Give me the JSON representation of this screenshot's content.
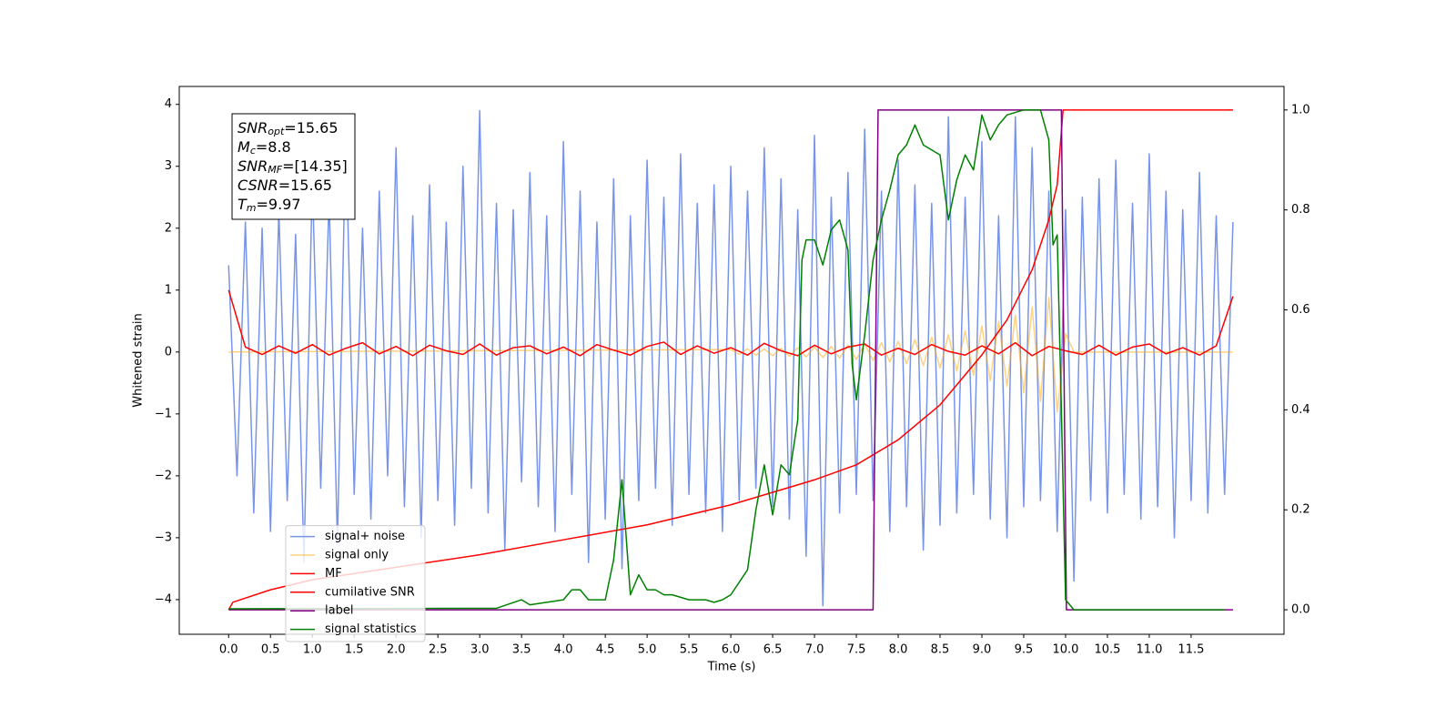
{
  "chart_data": {
    "type": "line",
    "xlabel": "Time (s)",
    "ylabel": "Whitened strain",
    "xlim": [
      -0.59,
      12.61
    ],
    "ylim": [
      -4.56,
      4.29
    ],
    "y2lim": [
      -0.049,
      1.047
    ],
    "xticks": [
      {
        "value": 0,
        "label": "0.0"
      },
      {
        "value": 0.5,
        "label": "0.5"
      },
      {
        "value": 1,
        "label": "1.0"
      },
      {
        "value": 1.5,
        "label": "1.5"
      },
      {
        "value": 2,
        "label": "2.0"
      },
      {
        "value": 2.5,
        "label": "2.5"
      },
      {
        "value": 3,
        "label": "3.0"
      },
      {
        "value": 3.5,
        "label": "3.5"
      },
      {
        "value": 4,
        "label": "4.0"
      },
      {
        "value": 4.5,
        "label": "4.5"
      },
      {
        "value": 5,
        "label": "5.0"
      },
      {
        "value": 5.5,
        "label": "5.5"
      },
      {
        "value": 6,
        "label": "6.0"
      },
      {
        "value": 6.5,
        "label": "6.5"
      },
      {
        "value": 7,
        "label": "7.0"
      },
      {
        "value": 7.5,
        "label": "7.5"
      },
      {
        "value": 8,
        "label": "8.0"
      },
      {
        "value": 8.5,
        "label": "8.5"
      },
      {
        "value": 9,
        "label": "9.0"
      },
      {
        "value": 9.5,
        "label": "9.5"
      },
      {
        "value": 10,
        "label": "10.0"
      },
      {
        "value": 10.5,
        "label": "10.5"
      },
      {
        "value": 11,
        "label": "11.0"
      },
      {
        "value": 11.5,
        "label": "11.5"
      }
    ],
    "yticks": [
      {
        "value": -4,
        "label": "−4"
      },
      {
        "value": -3,
        "label": "−3"
      },
      {
        "value": -2,
        "label": "−2"
      },
      {
        "value": -1,
        "label": "−1"
      },
      0,
      1,
      2,
      3,
      4
    ],
    "y2ticks": [
      {
        "value": 0,
        "label": "0.0"
      },
      {
        "value": 0.2,
        "label": "0.2"
      },
      {
        "value": 0.4,
        "label": "0.4"
      },
      {
        "value": 0.6,
        "label": "0.6"
      },
      {
        "value": 0.8,
        "label": "0.8"
      },
      {
        "value": 1,
        "label": "1.0"
      }
    ],
    "legend": "lower left",
    "info_box": [
      {
        "symbol": "SNR",
        "subscript": "opt",
        "text": "=15.65"
      },
      {
        "symbol": "M",
        "subscript": "c",
        "text": "=8.8"
      },
      {
        "symbol": "SNR",
        "subscript": "MF",
        "text": "=[14.35]"
      },
      {
        "symbol": "CSNR",
        "text": "=15.65"
      },
      {
        "symbol": "T",
        "subscript": "m",
        "text": "=9.97"
      }
    ],
    "series": [
      {
        "name": "signal+ noise",
        "color": "#7894e8",
        "axis": "y",
        "x": [
          0.0,
          0.1,
          0.2,
          0.3,
          0.4,
          0.5,
          0.6,
          0.7,
          0.8,
          0.9,
          1.0,
          1.1,
          1.2,
          1.3,
          1.4,
          1.5,
          1.6,
          1.7,
          1.8,
          1.9,
          2.0,
          2.1,
          2.2,
          2.3,
          2.4,
          2.5,
          2.6,
          2.7,
          2.8,
          2.9,
          3.0,
          3.1,
          3.2,
          3.3,
          3.4,
          3.5,
          3.6,
          3.7,
          3.8,
          3.9,
          4.0,
          4.1,
          4.2,
          4.3,
          4.4,
          4.5,
          4.6,
          4.7,
          4.8,
          4.9,
          5.0,
          5.1,
          5.2,
          5.3,
          5.4,
          5.5,
          5.6,
          5.7,
          5.8,
          5.9,
          6.0,
          6.1,
          6.2,
          6.3,
          6.4,
          6.5,
          6.6,
          6.7,
          6.8,
          6.9,
          7.0,
          7.1,
          7.2,
          7.3,
          7.4,
          7.5,
          7.6,
          7.7,
          7.8,
          7.9,
          8.0,
          8.1,
          8.2,
          8.3,
          8.4,
          8.5,
          8.6,
          8.7,
          8.8,
          8.9,
          9.0,
          9.1,
          9.2,
          9.3,
          9.4,
          9.5,
          9.6,
          9.7,
          9.8,
          9.9,
          10.0,
          10.1,
          10.2,
          10.3,
          10.4,
          10.5,
          10.6,
          10.7,
          10.8,
          10.9,
          11.0,
          11.1,
          11.2,
          11.3,
          11.4,
          11.5,
          11.6,
          11.7,
          11.8,
          11.9,
          12.0
        ],
        "values": [
          1.4,
          -2.0,
          2.1,
          -2.6,
          2.0,
          -2.9,
          2.3,
          -2.4,
          1.9,
          -3.4,
          2.8,
          -2.2,
          2.5,
          -3.1,
          3.6,
          -2.3,
          2.0,
          -2.7,
          2.6,
          -2.0,
          3.3,
          -2.5,
          2.2,
          -3.0,
          2.7,
          -2.4,
          2.1,
          -2.8,
          3.0,
          -2.2,
          3.9,
          -2.6,
          2.4,
          -3.2,
          2.3,
          -2.1,
          2.9,
          -2.5,
          2.2,
          -2.9,
          3.4,
          -2.3,
          2.6,
          -3.4,
          2.1,
          -2.7,
          2.8,
          -3.5,
          2.2,
          -2.4,
          3.1,
          -2.2,
          2.5,
          -2.8,
          3.2,
          -2.3,
          2.4,
          -2.6,
          2.7,
          -2.9,
          3.0,
          -2.4,
          2.6,
          -2.2,
          3.3,
          -2.5,
          2.8,
          -2.7,
          2.3,
          -3.3,
          3.5,
          -4.1,
          2.5,
          -2.6,
          2.9,
          -2.3,
          3.6,
          -2.4,
          2.6,
          -2.9,
          3.1,
          -2.5,
          2.7,
          -3.2,
          2.4,
          -2.8,
          3.8,
          -2.6,
          2.5,
          -2.3,
          3.4,
          -2.7,
          2.2,
          -3.0,
          3.8,
          -2.5,
          3.3,
          -2.4,
          2.6,
          -2.9,
          2.3,
          -3.7,
          2.5,
          -2.4,
          2.8,
          -2.6,
          3.1,
          -2.3,
          2.4,
          -2.7,
          3.2,
          -2.5,
          2.6,
          -3.0,
          2.3,
          -2.4,
          2.9,
          -2.6,
          2.2,
          -2.3,
          2.1
        ]
      },
      {
        "name": "signal only",
        "color": "orange",
        "alpha": 0.5,
        "axis": "y",
        "x": [
          0.0,
          6.0,
          6.1,
          6.2,
          6.3,
          6.4,
          6.5,
          6.6,
          6.7,
          6.8,
          6.9,
          7.0,
          7.1,
          7.2,
          7.3,
          7.4,
          7.5,
          7.6,
          7.7,
          7.8,
          7.9,
          8.0,
          8.1,
          8.2,
          8.3,
          8.4,
          8.5,
          8.6,
          8.7,
          8.8,
          8.9,
          9.0,
          9.1,
          9.2,
          9.3,
          9.4,
          9.5,
          9.6,
          9.7,
          9.8,
          9.9,
          10.0,
          10.1,
          12.0
        ],
        "values": [
          0,
          0.04,
          -0.04,
          0.05,
          -0.05,
          0.05,
          -0.06,
          0.06,
          -0.07,
          0.07,
          -0.08,
          0.08,
          -0.09,
          0.09,
          -0.1,
          0.11,
          -0.12,
          0.13,
          -0.14,
          0.15,
          -0.16,
          0.17,
          -0.19,
          0.2,
          -0.22,
          0.24,
          -0.26,
          0.28,
          -0.31,
          0.34,
          -0.38,
          0.42,
          -0.46,
          0.5,
          -0.55,
          0.6,
          -0.66,
          0.73,
          -0.8,
          0.88,
          -0.97,
          0.3,
          0,
          0
        ]
      },
      {
        "name": "MF",
        "color": "red",
        "axis": "y",
        "x": [
          0.0,
          0.2,
          0.4,
          0.6,
          0.8,
          1.0,
          1.2,
          1.4,
          1.6,
          1.8,
          2.0,
          2.2,
          2.4,
          2.6,
          2.8,
          3.0,
          3.2,
          3.4,
          3.6,
          3.8,
          4.0,
          4.2,
          4.4,
          4.6,
          4.8,
          5.0,
          5.2,
          5.4,
          5.6,
          5.8,
          6.0,
          6.2,
          6.4,
          6.6,
          6.8,
          7.0,
          7.2,
          7.4,
          7.6,
          7.8,
          8.0,
          8.2,
          8.4,
          8.6,
          8.8,
          9.0,
          9.2,
          9.4,
          9.6,
          9.8,
          10.0,
          10.2,
          10.4,
          10.6,
          10.8,
          11.0,
          11.2,
          11.4,
          11.6,
          11.8,
          12.0
        ],
        "values": [
          1.0,
          0.08,
          -0.04,
          0.1,
          -0.02,
          0.12,
          -0.05,
          0.06,
          0.15,
          -0.03,
          0.09,
          -0.06,
          0.11,
          0.02,
          -0.04,
          0.13,
          -0.05,
          0.07,
          0.1,
          -0.03,
          0.08,
          -0.06,
          0.12,
          0.03,
          -0.05,
          0.09,
          0.16,
          -0.04,
          0.1,
          -0.02,
          0.07,
          -0.05,
          0.14,
          0.02,
          -0.06,
          0.11,
          -0.03,
          0.08,
          0.13,
          -0.05,
          0.06,
          -0.04,
          0.12,
          0.01,
          -0.05,
          0.1,
          -0.03,
          0.15,
          -0.06,
          0.09,
          0.02,
          -0.04,
          0.11,
          -0.05,
          0.08,
          0.13,
          -0.03,
          0.07,
          -0.05,
          0.1,
          0.9
        ]
      },
      {
        "name": "cumilative SNR",
        "color": "red",
        "axis": "y2",
        "x": [
          0,
          0.05,
          0.5,
          1,
          2,
          3,
          4,
          5,
          6,
          7,
          7.5,
          8,
          8.5,
          9,
          9.3,
          9.6,
          9.8,
          9.9,
          9.97,
          10,
          11,
          12
        ],
        "values": [
          0,
          0.015,
          0.04,
          0.06,
          0.085,
          0.11,
          0.14,
          0.17,
          0.21,
          0.26,
          0.29,
          0.34,
          0.41,
          0.51,
          0.58,
          0.68,
          0.78,
          0.85,
          1.0,
          1.0,
          1.0,
          1.0
        ]
      },
      {
        "name": "label",
        "color": "purple",
        "axis": "y2",
        "x": [
          0,
          7.7,
          7.76,
          9.95,
          10.01,
          12
        ],
        "values": [
          0,
          0,
          1,
          1,
          0,
          0
        ]
      },
      {
        "name": "signal statistics",
        "color": "green",
        "axis": "y2",
        "x": [
          0,
          3.2,
          3.5,
          3.6,
          4.0,
          4.1,
          4.2,
          4.3,
          4.5,
          4.6,
          4.7,
          4.8,
          4.9,
          5.0,
          5.1,
          5.2,
          5.3,
          5.5,
          5.7,
          5.8,
          5.9,
          6.0,
          6.2,
          6.3,
          6.4,
          6.5,
          6.6,
          6.7,
          6.8,
          6.85,
          6.9,
          7.0,
          7.1,
          7.2,
          7.3,
          7.4,
          7.45,
          7.5,
          7.6,
          7.7,
          7.8,
          7.9,
          8.0,
          8.1,
          8.2,
          8.3,
          8.4,
          8.5,
          8.6,
          8.7,
          8.8,
          8.9,
          9.0,
          9.1,
          9.2,
          9.3,
          9.5,
          9.7,
          9.8,
          9.85,
          9.9,
          9.95,
          10.0,
          10.1,
          11.9
        ],
        "values": [
          0.002,
          0.003,
          0.02,
          0.01,
          0.02,
          0.04,
          0.04,
          0.02,
          0.02,
          0.1,
          0.26,
          0.03,
          0.07,
          0.04,
          0.04,
          0.03,
          0.03,
          0.02,
          0.02,
          0.015,
          0.02,
          0.03,
          0.08,
          0.2,
          0.29,
          0.19,
          0.29,
          0.27,
          0.38,
          0.7,
          0.74,
          0.74,
          0.69,
          0.76,
          0.78,
          0.72,
          0.49,
          0.42,
          0.55,
          0.7,
          0.78,
          0.84,
          0.91,
          0.93,
          0.97,
          0.93,
          0.92,
          0.91,
          0.78,
          0.86,
          0.91,
          0.88,
          0.99,
          0.94,
          0.97,
          0.99,
          1.0,
          1.0,
          0.94,
          0.73,
          0.75,
          0.4,
          0.02,
          0.0,
          0.0
        ]
      }
    ]
  }
}
